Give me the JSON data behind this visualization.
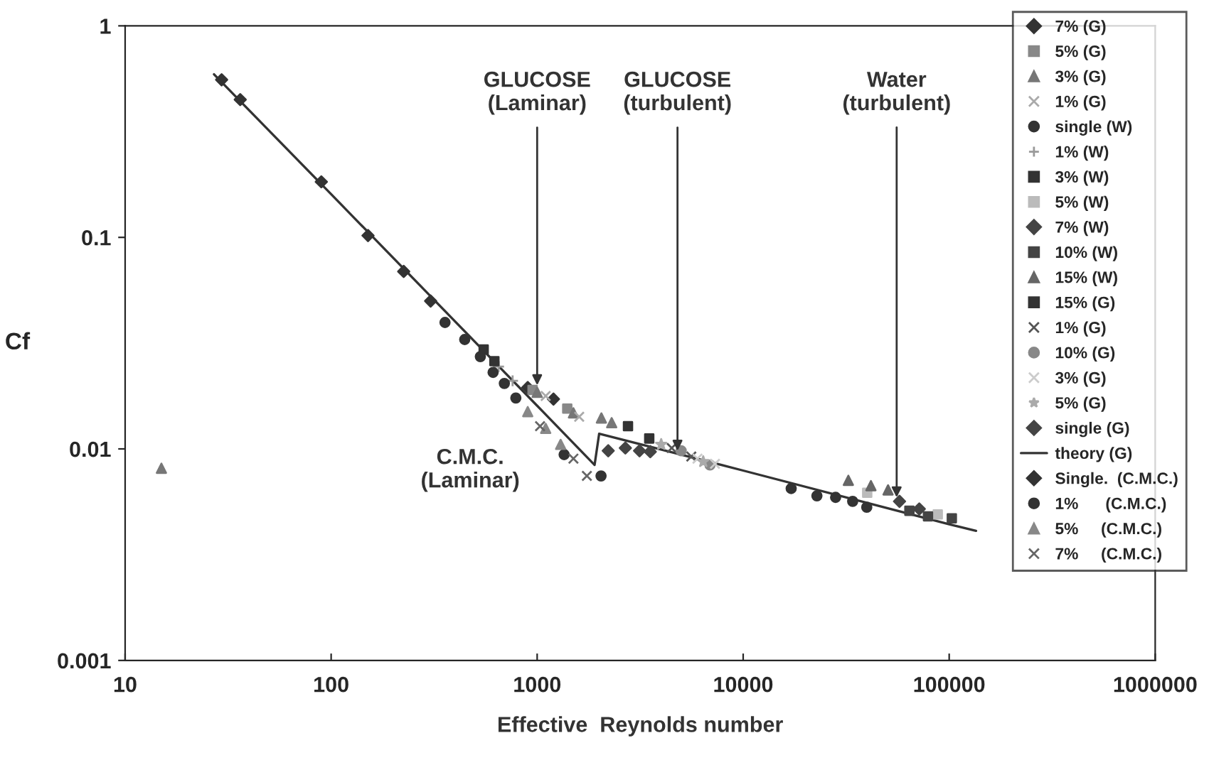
{
  "chart_data": {
    "type": "scatter",
    "xlabel": "Effective  Reynolds number",
    "ylabel": "Cf",
    "log": "xy",
    "xlim": [
      10,
      1000000
    ],
    "xticks": [
      10,
      100,
      1000,
      10000,
      100000,
      1000000
    ],
    "ylim": [
      0.001,
      1
    ],
    "yticks": [
      0.001,
      0.01,
      0.1,
      1
    ],
    "grid": false,
    "legend": "right",
    "annotations": [
      {
        "text": "GLUCOSE\n(Laminar)",
        "x": 1000,
        "y": 0.02
      },
      {
        "text": "GLUCOSE\n(turbulent)",
        "x": 4800,
        "y": 0.0098
      },
      {
        "text": "Water\n(turbulent)",
        "x": 55600,
        "y": 0.0059
      },
      "C.M.C.\n(Laminar)"
    ],
    "series": [
      {
        "name": "7% (G)",
        "color": "#333333",
        "marker": "diamond",
        "x": [
          900,
          1200
        ],
        "values": [
          0.0195,
          0.0172
        ]
      },
      {
        "name": "5% (G)",
        "color": "#888888",
        "marker": "square",
        "x": [
          950,
          1400
        ],
        "values": [
          0.019,
          0.0155
        ]
      },
      {
        "name": "3% (G)",
        "color": "#777777",
        "marker": "triangle",
        "x": [
          15,
          1000,
          1500,
          2050,
          2300
        ],
        "values": [
          0.0081,
          0.0185,
          0.0148,
          0.014,
          0.0133
        ]
      },
      {
        "name": "1% (G)",
        "color": "#aaaaaa",
        "marker": "cross",
        "x": [
          1100,
          1600
        ],
        "values": [
          0.0178,
          0.0142
        ]
      },
      {
        "name": "single (W)",
        "color": "#333333",
        "marker": "circle",
        "x": [
          17100,
          22800,
          28100,
          34000,
          39800
        ],
        "values": [
          0.0065,
          0.006,
          0.0059,
          0.00565,
          0.0053
        ]
      },
      {
        "name": "1% (W)",
        "color": "#999999",
        "marker": "plus",
        "x": [
          650,
          760
        ],
        "values": [
          0.0245,
          0.021
        ]
      },
      {
        "name": "3% (W)",
        "color": "#333333",
        "marker": "square",
        "x": [
          550,
          620
        ],
        "values": [
          0.0295,
          0.026
        ]
      },
      {
        "name": "5% (W)",
        "color": "#bbbbbb",
        "marker": "square",
        "x": [
          40000,
          88000
        ],
        "values": [
          0.0062,
          0.0049
        ]
      },
      {
        "name": "7% (W)",
        "color": "#444444",
        "marker": "diamond",
        "x": [
          57400,
          71600
        ],
        "values": [
          0.00565,
          0.0052
        ]
      },
      {
        "name": "10% (W)",
        "color": "#444444",
        "marker": "square",
        "x": [
          64100,
          78900,
          103000
        ],
        "values": [
          0.0051,
          0.0048,
          0.0047
        ]
      },
      {
        "name": "15% (W)",
        "color": "#666666",
        "marker": "triangle",
        "x": [
          32400,
          41700,
          50500
        ],
        "values": [
          0.0071,
          0.0067,
          0.0064
        ]
      },
      {
        "name": "15% (G)",
        "color": "#333333",
        "marker": "square",
        "x": [
          2760,
          3500
        ],
        "values": [
          0.0128,
          0.0112
        ]
      },
      {
        "name": "1% (G)",
        "color": "#555555",
        "marker": "cross",
        "x": [
          4500,
          5600
        ],
        "values": [
          0.0101,
          0.0092
        ]
      },
      {
        "name": "10% (G)",
        "color": "#888888",
        "marker": "circle",
        "x": [
          5000,
          6900
        ],
        "values": [
          0.0098,
          0.0084
        ]
      },
      {
        "name": "3% (G)",
        "color": "#cccccc",
        "marker": "cross",
        "x": [
          6000,
          7300
        ],
        "values": [
          0.009,
          0.0085
        ]
      },
      {
        "name": "5% (G)",
        "color": "#aaaaaa",
        "marker": "star",
        "x": [
          4000,
          6400
        ],
        "values": [
          0.0105,
          0.0087
        ]
      },
      {
        "name": "single (G)",
        "color": "#444444",
        "marker": "diamond",
        "x": [
          2213,
          2680,
          3140,
          3540
        ],
        "values": [
          0.0098,
          0.0101,
          0.0098,
          0.0097
        ]
      },
      {
        "name": "theory (G)",
        "color": "#333333",
        "type": "line",
        "marker": "none",
        "x": [
          27,
          100,
          1000,
          1900,
          2000,
          10000,
          100000,
          135000
        ],
        "values": [
          0.59,
          0.16,
          0.016,
          0.0084,
          0.0118,
          0.0079,
          0.0044,
          0.0041
        ]
      },
      {
        "name": "Single.  (C.M.C.)",
        "color": "#333333",
        "marker": "diamond",
        "x": [
          29.4,
          36.2,
          89.6,
          151,
          225,
          304
        ],
        "values": [
          0.556,
          0.448,
          0.183,
          0.102,
          0.069,
          0.05
        ]
      },
      {
        "name": "1%      (C.M.C.)",
        "color": "#333333",
        "marker": "circle",
        "x": [
          357,
          445,
          530,
          611,
          693,
          788,
          1352,
          2042
        ],
        "values": [
          0.0396,
          0.0329,
          0.0273,
          0.023,
          0.0204,
          0.0174,
          0.0094,
          0.00745
        ]
      },
      {
        "name": "5%     (C.M.C.)",
        "color": "#888888",
        "marker": "triangle",
        "x": [
          900,
          1100,
          1300
        ],
        "values": [
          0.015,
          0.0125,
          0.0105
        ]
      },
      {
        "name": "7%     (C.M.C.)",
        "color": "#666666",
        "marker": "cross",
        "x": [
          1033,
          1500,
          1743
        ],
        "values": [
          0.0128,
          0.009,
          0.00745
        ]
      }
    ]
  }
}
